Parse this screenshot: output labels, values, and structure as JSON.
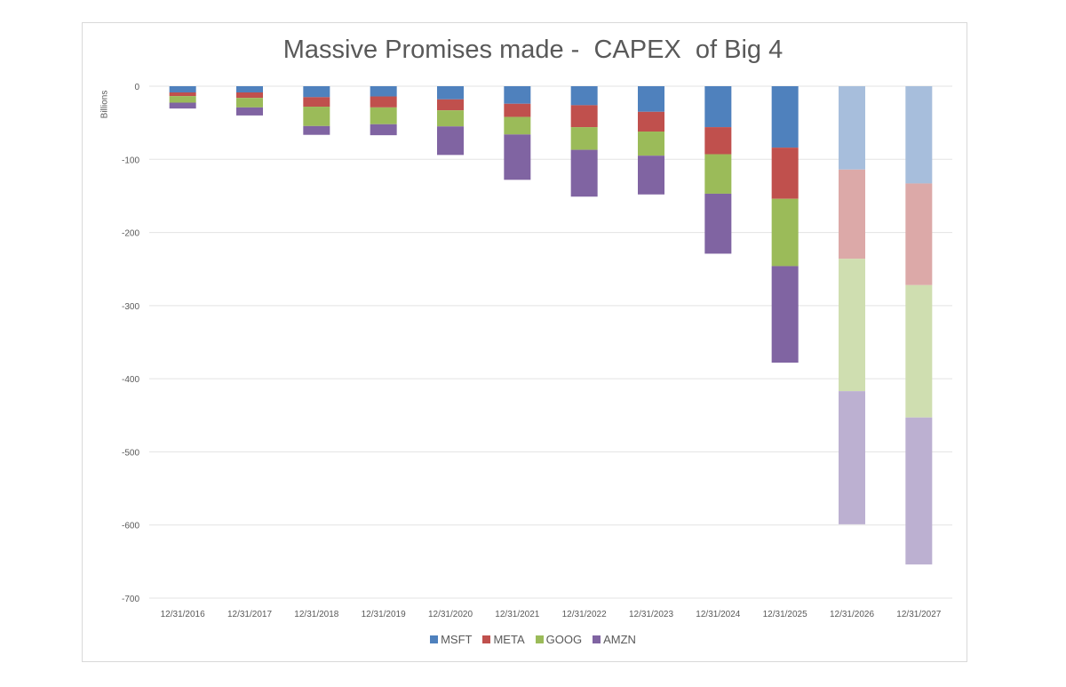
{
  "chart_data": {
    "type": "bar",
    "stacked": true,
    "title": "Massive Promises made -  CAPEX  of Big 4",
    "xlabel": "",
    "ylabel": "Billions",
    "ylim": [
      -700,
      0
    ],
    "yticks": [
      0,
      -100,
      -200,
      -300,
      -400,
      -500,
      -600,
      -700
    ],
    "grid": true,
    "legend_position": "bottom",
    "categories": [
      "12/31/2016",
      "12/31/2017",
      "12/31/2018",
      "12/31/2019",
      "12/31/2020",
      "12/31/2021",
      "12/31/2022",
      "12/31/2023",
      "12/31/2024",
      "12/31/2025",
      "12/31/2026",
      "12/31/2027"
    ],
    "faded_categories": [
      "12/31/2026",
      "12/31/2027"
    ],
    "series": [
      {
        "name": "MSFT",
        "color": "#4f81bd",
        "faded_color": "#a7bedc",
        "values": [
          -8.5,
          -8.5,
          -15,
          -14,
          -18,
          -24,
          -26,
          -35,
          -56,
          -84,
          -114,
          -133
        ]
      },
      {
        "name": "META",
        "color": "#c0504d",
        "faded_color": "#dca9a8",
        "values": [
          -5,
          -7.5,
          -13,
          -15,
          -15,
          -18,
          -30,
          -27,
          -37,
          -70,
          -122,
          -139
        ]
      },
      {
        "name": "GOOG",
        "color": "#9bbb59",
        "faded_color": "#cfdeb0",
        "values": [
          -9,
          -13,
          -26.5,
          -23,
          -22,
          -24,
          -31,
          -33,
          -54,
          -92,
          -181,
          -181
        ]
      },
      {
        "name": "AMZN",
        "color": "#8064a2",
        "faded_color": "#bcb0d1",
        "values": [
          -8,
          -11,
          -12,
          -15,
          -39,
          -62,
          -64,
          -53,
          -82,
          -132,
          -182,
          -201
        ]
      }
    ]
  }
}
